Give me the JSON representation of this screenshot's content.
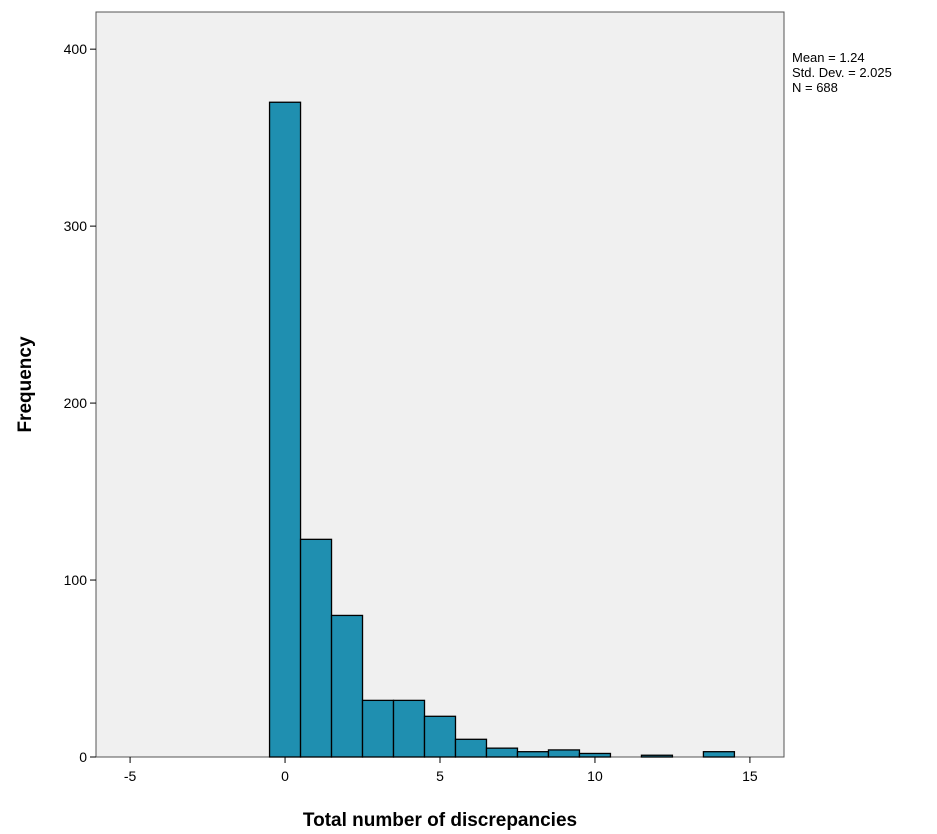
{
  "chart_data": {
    "type": "bar",
    "subtype": "histogram",
    "xlabel": "Total number of discrepancies",
    "ylabel": "Frequency",
    "xlim": [
      -6.1,
      16.1
    ],
    "ylim": [
      0,
      421
    ],
    "x_ticks": [
      -5,
      0,
      5,
      10,
      15
    ],
    "y_ticks": [
      0,
      100,
      200,
      300,
      400
    ],
    "bin_width": 1,
    "bins": [
      {
        "start": -0.5,
        "end": 0.5,
        "value": 370
      },
      {
        "start": 0.5,
        "end": 1.5,
        "value": 123
      },
      {
        "start": 1.5,
        "end": 2.5,
        "value": 80
      },
      {
        "start": 2.5,
        "end": 3.5,
        "value": 32
      },
      {
        "start": 3.5,
        "end": 4.5,
        "value": 32
      },
      {
        "start": 4.5,
        "end": 5.5,
        "value": 23
      },
      {
        "start": 5.5,
        "end": 6.5,
        "value": 10
      },
      {
        "start": 6.5,
        "end": 7.5,
        "value": 5
      },
      {
        "start": 7.5,
        "end": 8.5,
        "value": 3
      },
      {
        "start": 8.5,
        "end": 9.5,
        "value": 4
      },
      {
        "start": 9.5,
        "end": 10.5,
        "value": 2
      },
      {
        "start": 10.5,
        "end": 11.5,
        "value": 0
      },
      {
        "start": 11.5,
        "end": 12.5,
        "value": 1
      },
      {
        "start": 12.5,
        "end": 13.5,
        "value": 0
      },
      {
        "start": 13.5,
        "end": 14.5,
        "value": 3
      }
    ],
    "bar_color": "#1f8fb0",
    "plot_background": "#f0f0f0",
    "grid": false,
    "legend_placement": "right",
    "stats": {
      "mean": "Mean = 1.24",
      "std_dev": "Std. Dev. = 2.025",
      "n": "N = 688"
    }
  }
}
